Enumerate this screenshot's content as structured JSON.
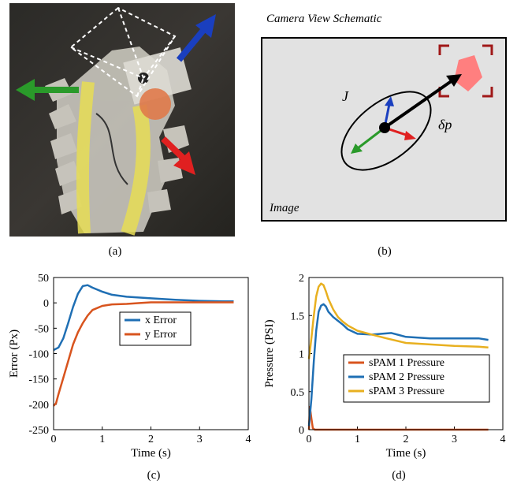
{
  "panel_a": {
    "caption": "(a)"
  },
  "panel_b": {
    "caption": "(b)",
    "title": "Camera View Schematic",
    "image_label": "Image",
    "jacobian_label": "J",
    "delta_p_label": "δp",
    "colors": {
      "target": "#ff7f7f",
      "bracket": "#a01818",
      "up": "#1a3fbf",
      "down_left": "#2a9a2a",
      "right": "#e02020"
    }
  },
  "chart_data": [
    {
      "type": "line",
      "panel": "(c)",
      "xlabel": "Time (s)",
      "ylabel": "Error (Px)",
      "xlim": [
        0,
        4
      ],
      "ylim": [
        -250,
        50
      ],
      "xticks": [
        0,
        1,
        2,
        3,
        4
      ],
      "yticks": [
        50,
        0,
        -50,
        -100,
        -150,
        -200,
        -250
      ],
      "legend": "center-right",
      "series": [
        {
          "name": "x Error",
          "color": "#1f6fb4",
          "x": [
            0,
            0.1,
            0.2,
            0.3,
            0.4,
            0.5,
            0.6,
            0.7,
            0.8,
            1.0,
            1.2,
            1.5,
            2.0,
            2.5,
            3.0,
            3.5,
            3.7
          ],
          "y": [
            -93,
            -88,
            -70,
            -40,
            -8,
            18,
            33,
            35,
            30,
            22,
            16,
            12,
            9,
            6,
            4,
            3,
            3
          ]
        },
        {
          "name": "y Error",
          "color": "#d8541e",
          "x": [
            0,
            0.05,
            0.1,
            0.2,
            0.3,
            0.4,
            0.5,
            0.6,
            0.7,
            0.8,
            1.0,
            1.2,
            1.5,
            1.8,
            2.0,
            2.5,
            3.0,
            3.5,
            3.7
          ],
          "y": [
            -203,
            -198,
            -180,
            -148,
            -115,
            -82,
            -58,
            -40,
            -25,
            -14,
            -6,
            -3,
            -2,
            0,
            1,
            1,
            1,
            1,
            1
          ]
        }
      ]
    },
    {
      "type": "line",
      "panel": "(d)",
      "xlabel": "Time (s)",
      "ylabel": "Pressure (PSI)",
      "xlim": [
        0,
        4
      ],
      "ylim": [
        0,
        2
      ],
      "xticks": [
        0,
        1,
        2,
        3,
        4
      ],
      "yticks": [
        2,
        1.5,
        1,
        0.5,
        0
      ],
      "legend": "bottom-right",
      "series": [
        {
          "name": "sPAM 1 Pressure",
          "color": "#d8541e",
          "x": [
            0,
            0.02,
            0.05,
            0.08,
            0.12,
            0.5,
            1,
            2,
            3,
            3.7
          ],
          "y": [
            0,
            0.3,
            0.15,
            0.02,
            0,
            0,
            0,
            0,
            0,
            0
          ]
        },
        {
          "name": "sPAM 2 Pressure",
          "color": "#1f6fb4",
          "x": [
            0,
            0.05,
            0.1,
            0.15,
            0.2,
            0.25,
            0.3,
            0.35,
            0.4,
            0.5,
            0.6,
            0.7,
            0.8,
            1.0,
            1.3,
            1.7,
            2.0,
            2.5,
            3.0,
            3.5,
            3.7
          ],
          "y": [
            0.05,
            0.4,
            0.9,
            1.3,
            1.55,
            1.63,
            1.65,
            1.62,
            1.55,
            1.48,
            1.43,
            1.38,
            1.32,
            1.26,
            1.25,
            1.27,
            1.22,
            1.2,
            1.2,
            1.2,
            1.18
          ]
        },
        {
          "name": "sPAM 3 Pressure",
          "color": "#e8b020",
          "x": [
            0,
            0.05,
            0.1,
            0.15,
            0.2,
            0.25,
            0.3,
            0.35,
            0.4,
            0.5,
            0.6,
            0.7,
            0.8,
            1.0,
            1.3,
            1.6,
            2.0,
            2.5,
            3.0,
            3.5,
            3.7
          ],
          "y": [
            0.93,
            1.2,
            1.5,
            1.75,
            1.88,
            1.92,
            1.9,
            1.82,
            1.72,
            1.58,
            1.48,
            1.42,
            1.37,
            1.3,
            1.25,
            1.2,
            1.14,
            1.12,
            1.1,
            1.09,
            1.08
          ]
        }
      ]
    }
  ]
}
